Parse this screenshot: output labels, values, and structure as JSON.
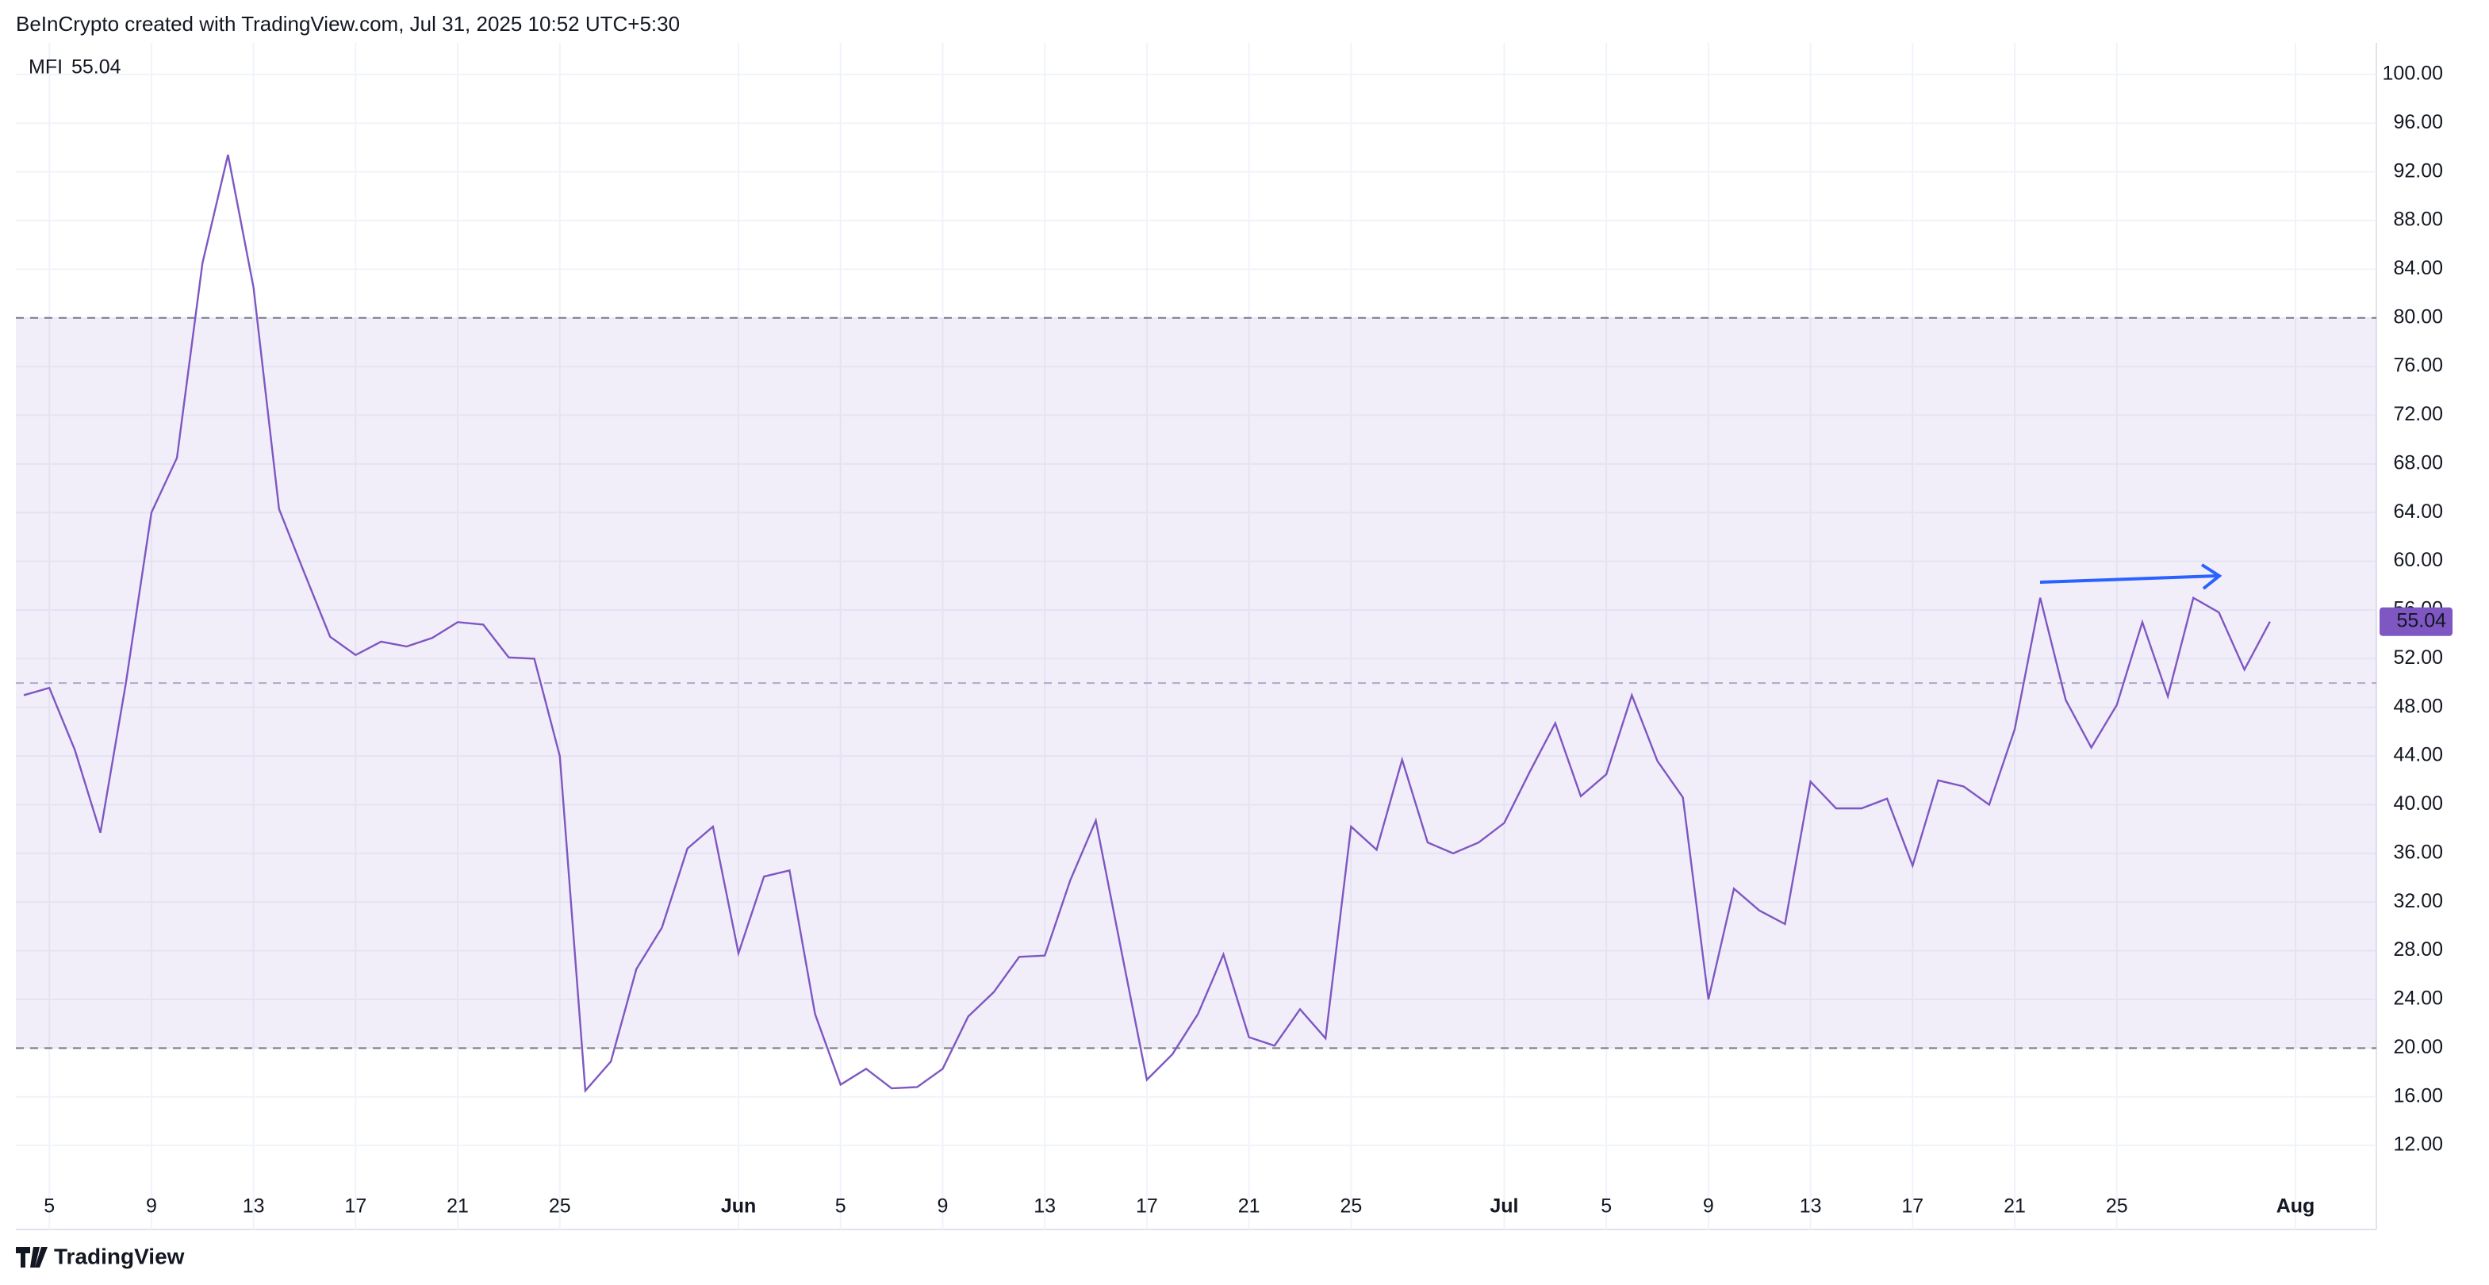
{
  "header": {
    "text": "BeInCrypto created with TradingView.com, Jul 31, 2025 10:52 UTC+5:30"
  },
  "footer": {
    "brand": "TradingView"
  },
  "chart_data": {
    "type": "line",
    "categories": [
      null,
      "5",
      null,
      null,
      null,
      "9",
      null,
      null,
      null,
      "13",
      null,
      null,
      null,
      "17",
      null,
      null,
      null,
      "21",
      null,
      null,
      null,
      "25",
      null,
      null,
      null,
      null,
      null,
      null,
      "Jun",
      null,
      null,
      null,
      "5",
      null,
      null,
      null,
      "9",
      null,
      null,
      null,
      "13",
      null,
      null,
      null,
      "17",
      null,
      null,
      null,
      "21",
      null,
      null,
      null,
      "25",
      null,
      null,
      null,
      null,
      null,
      "Jul",
      null,
      null,
      null,
      "5",
      null,
      null,
      null,
      "9",
      null,
      null,
      null,
      "13",
      null,
      null,
      null,
      "17",
      null,
      null,
      null,
      "21",
      null,
      null,
      null,
      "25",
      null,
      null,
      null,
      null,
      null,
      null,
      "Aug"
    ],
    "series": [
      {
        "name": "MFI",
        "color": "#7e57c2",
        "values": [
          49,
          49.6,
          44.5,
          37.7,
          50,
          64,
          68.5,
          84.5,
          93.4,
          82.5,
          64.3,
          59,
          53.8,
          52.3,
          53.4,
          53,
          53.7,
          55,
          54.8,
          52.1,
          52,
          44,
          16.5,
          18.9,
          26.5,
          29.9,
          36.4,
          38.2,
          27.8,
          34.1,
          34.6,
          22.8,
          17,
          18.3,
          16.7,
          16.8,
          18.3,
          22.6,
          24.6,
          27.5,
          27.6,
          33.8,
          38.7,
          28,
          17.4,
          19.5,
          22.8,
          27.7,
          20.9,
          20.2,
          23.2,
          20.8,
          38.2,
          36.3,
          43.7,
          36.9,
          36,
          36.9,
          38.5,
          42.7,
          46.7,
          40.7,
          42.5,
          49,
          43.6,
          40.6,
          24,
          33.1,
          31.3,
          30.2,
          41.9,
          39.7,
          39.7,
          40.5,
          35,
          42,
          41.5,
          40,
          46.2,
          57,
          48.6,
          44.7,
          48.2,
          55,
          48.9,
          57,
          55.8,
          51.1,
          55.04,
          null
        ]
      }
    ],
    "ylim": [
      5.1,
      102.6
    ],
    "yticks": [
      {
        "value": 12,
        "label": "12.00"
      },
      {
        "value": 16,
        "label": "16.00"
      },
      {
        "value": 20,
        "label": "20.00"
      },
      {
        "value": 24,
        "label": "24.00"
      },
      {
        "value": 28,
        "label": "28.00"
      },
      {
        "value": 32,
        "label": "32.00"
      },
      {
        "value": 36,
        "label": "36.00"
      },
      {
        "value": 40,
        "label": "40.00"
      },
      {
        "value": 44,
        "label": "44.00"
      },
      {
        "value": 48,
        "label": "48.00"
      },
      {
        "value": 52,
        "label": "52.00"
      },
      {
        "value": 56,
        "label": "56.00"
      },
      {
        "value": 60,
        "label": "60.00"
      },
      {
        "value": 64,
        "label": "64.00"
      },
      {
        "value": 68,
        "label": "68.00"
      },
      {
        "value": 72,
        "label": "72.00"
      },
      {
        "value": 76,
        "label": "76.00"
      },
      {
        "value": 80,
        "label": "80.00"
      },
      {
        "value": 84,
        "label": "84.00"
      },
      {
        "value": 88,
        "label": "88.00"
      },
      {
        "value": 92,
        "label": "92.00"
      },
      {
        "value": 96,
        "label": "96.00"
      },
      {
        "value": 100,
        "label": "100.00"
      }
    ],
    "upper_band": 80,
    "lower_band": 20,
    "middle_line": 50,
    "band_color": "#7e57c2",
    "grid": true
  }
}
